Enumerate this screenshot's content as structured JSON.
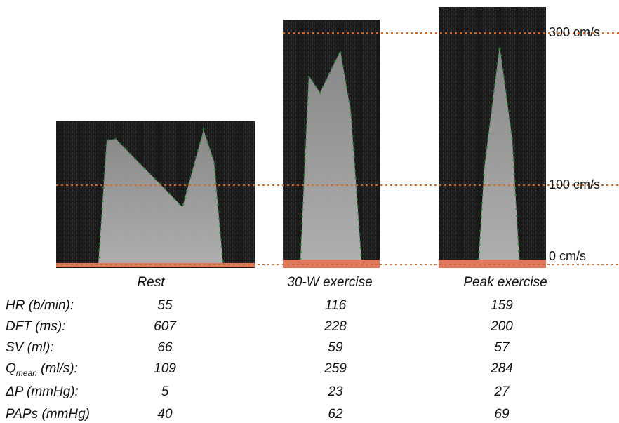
{
  "scale_labels": [
    "300 cm/s",
    "100 cm/s",
    "0 cm/s"
  ],
  "table": {
    "columns": [
      "Rest",
      "30-W exercise",
      "Peak exercise"
    ],
    "rows": [
      {
        "label": "HR (b/min):",
        "values": [
          55,
          116,
          159
        ]
      },
      {
        "label": "DFT (ms):",
        "values": [
          607,
          228,
          200
        ]
      },
      {
        "label": "SV (ml):",
        "values": [
          66,
          59,
          57
        ]
      },
      {
        "label": {
          "main": "Q",
          "sub": "mean",
          "rest": " (ml/s):"
        },
        "values": [
          109,
          259,
          284
        ]
      },
      {
        "label": "ΔP (mmHg):",
        "values": [
          5,
          23,
          27
        ]
      },
      {
        "label": "PAPs (mmHg)",
        "values": [
          40,
          62,
          69
        ]
      }
    ]
  }
}
